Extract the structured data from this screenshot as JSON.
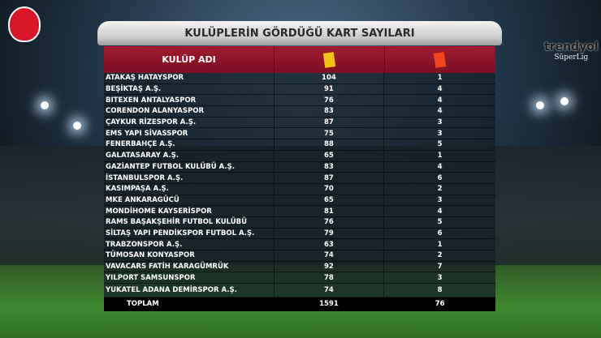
{
  "title": "KULÜPLERİN GÖRDÜĞÜ KART SAYILARI",
  "logos": {
    "left": "TFF",
    "right_brand": "trendyol",
    "right_sub": "SüperLig"
  },
  "header": {
    "club_label": "KULÜP ADI",
    "yellow_icon": "yellow-card-icon",
    "red_icon": "red-card-icon"
  },
  "colors": {
    "header": "#8d1328",
    "yellow_card": "#f2c21a",
    "red_card": "#f0461e"
  },
  "rows": [
    {
      "club": "ATAKAŞ HATAYSPOR",
      "yellow": "104",
      "red": "1"
    },
    {
      "club": "BEŞİKTAŞ A.Ş.",
      "yellow": "91",
      "red": "4"
    },
    {
      "club": "BITEXEN ANTALYASPOR",
      "yellow": "76",
      "red": "4"
    },
    {
      "club": "CORENDON ALANYASPOR",
      "yellow": "83",
      "red": "4"
    },
    {
      "club": "ÇAYKUR RİZESPOR A.Ş.",
      "yellow": "87",
      "red": "3"
    },
    {
      "club": "EMS YAPI SİVASSPOR",
      "yellow": "75",
      "red": "3"
    },
    {
      "club": "FENERBAHÇE A.Ş.",
      "yellow": "88",
      "red": "5"
    },
    {
      "club": "GALATASARAY A.Ş.",
      "yellow": "65",
      "red": "1"
    },
    {
      "club": "GAZİANTEP FUTBOL KULÜBÜ A.Ş.",
      "yellow": "83",
      "red": "4"
    },
    {
      "club": "İSTANBULSPOR A.Ş.",
      "yellow": "87",
      "red": "6"
    },
    {
      "club": "KASIMPAŞA A.Ş.",
      "yellow": "70",
      "red": "2"
    },
    {
      "club": "MKE ANKARAGÜCÜ",
      "yellow": "65",
      "red": "3"
    },
    {
      "club": "MONDİHOME KAYSERİSPOR",
      "yellow": "81",
      "red": "4"
    },
    {
      "club": "RAMS BAŞAKŞEHİR FUTBOL KULÜBÜ",
      "yellow": "76",
      "red": "5"
    },
    {
      "club": "SİLTAŞ YAPI PENDİKSPOR FUTBOL A.Ş.",
      "yellow": "79",
      "red": "6"
    },
    {
      "club": "TRABZONSPOR A.Ş.",
      "yellow": "63",
      "red": "1"
    },
    {
      "club": "TÜMOSAN KONYASPOR",
      "yellow": "74",
      "red": "2"
    },
    {
      "club": "VAVACARS FATİH KARAGÜMRÜK",
      "yellow": "92",
      "red": "7"
    },
    {
      "club": "YILPORT SAMSUNSPOR",
      "yellow": "78",
      "red": "3"
    },
    {
      "club": "YUKATEL ADANA DEMİRSPOR A.Ş.",
      "yellow": "74",
      "red": "8"
    }
  ],
  "total": {
    "label": "TOPLAM",
    "yellow": "1591",
    "red": "76"
  }
}
